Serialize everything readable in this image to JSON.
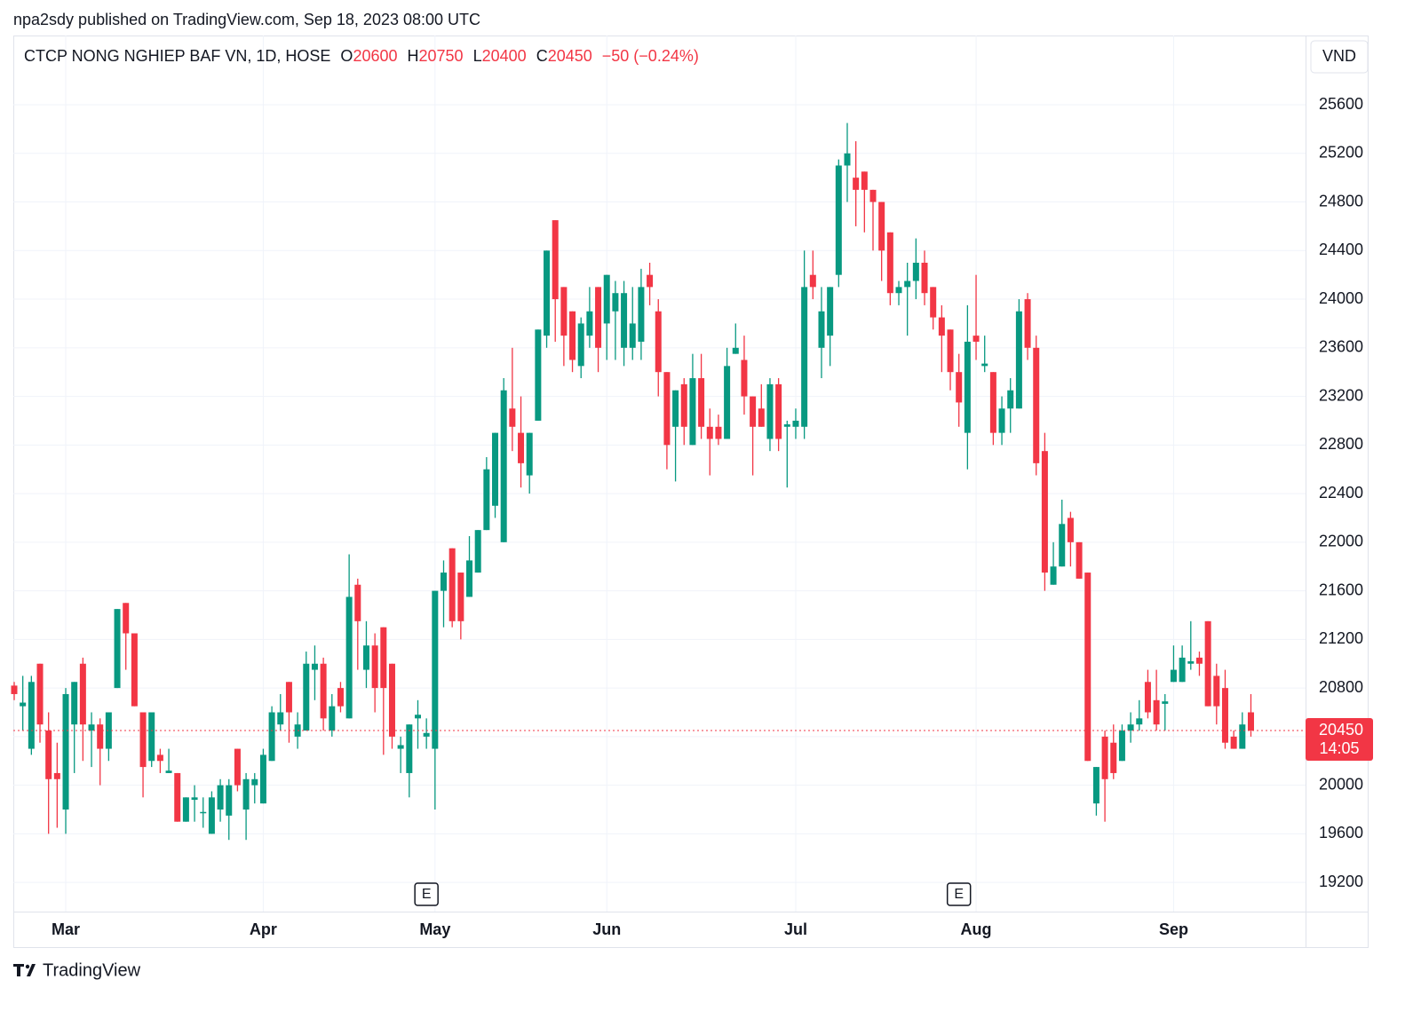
{
  "publisher": "npa2sdy published on TradingView.com, Sep 18, 2023 08:00 UTC",
  "brand": "TradingView",
  "header": {
    "symbol": "CTCP NONG NGHIEP BAF VN, 1D, HOSE",
    "o": "O",
    "h": "H",
    "l": "L",
    "c": "C",
    "change": "−50 (−0.24%)"
  },
  "currency": "VND",
  "countdown": "14:05",
  "chart_data": {
    "type": "candlestick",
    "up_color": "#089981",
    "down_color": "#f23645",
    "grid": true,
    "ylim": [
      18960,
      26170
    ],
    "yticks": [
      19200,
      19600,
      20000,
      20400,
      20800,
      21200,
      21600,
      22000,
      22400,
      22800,
      23200,
      23600,
      24000,
      24400,
      24800,
      25200,
      25600
    ],
    "events": [
      {
        "label": "E",
        "bar": 48
      },
      {
        "label": "E",
        "bar": 110
      }
    ],
    "categories": [
      null,
      null,
      null,
      null,
      null,
      null,
      "Mar",
      null,
      null,
      null,
      null,
      null,
      null,
      null,
      null,
      null,
      null,
      null,
      null,
      null,
      null,
      null,
      null,
      null,
      null,
      null,
      null,
      null,
      null,
      "Apr",
      null,
      null,
      null,
      null,
      null,
      null,
      null,
      null,
      null,
      null,
      null,
      null,
      null,
      null,
      null,
      null,
      null,
      null,
      null,
      "May",
      null,
      null,
      null,
      null,
      null,
      null,
      null,
      null,
      null,
      null,
      null,
      null,
      null,
      null,
      null,
      null,
      null,
      null,
      null,
      "Jun",
      null,
      null,
      null,
      null,
      null,
      null,
      null,
      null,
      null,
      null,
      null,
      null,
      null,
      null,
      null,
      null,
      null,
      null,
      null,
      null,
      null,
      "Jul",
      null,
      null,
      null,
      null,
      null,
      null,
      null,
      null,
      null,
      null,
      null,
      null,
      null,
      null,
      null,
      null,
      null,
      null,
      null,
      null,
      "Aug",
      null,
      null,
      null,
      null,
      null,
      null,
      null,
      null,
      null,
      null,
      null,
      null,
      null,
      null,
      null,
      null,
      null,
      null,
      null,
      null,
      null,
      null,
      "Sep",
      null,
      null,
      null,
      null,
      null,
      null,
      null,
      null,
      null
    ],
    "open": [
      20820,
      20650,
      20300,
      21000,
      20450,
      20100,
      19800,
      20500,
      21000,
      20450,
      20500,
      20300,
      20800,
      21500,
      21250,
      20600,
      20200,
      20250,
      20100,
      20100,
      19700,
      19880,
      19770,
      19600,
      19800,
      19750,
      20300,
      19800,
      20000,
      19850,
      20200,
      20500,
      20850,
      20400,
      20450,
      20950,
      21000,
      20450,
      20800,
      20550,
      21650,
      20950,
      21150,
      21300,
      21000,
      20300,
      20100,
      20550,
      20400,
      20300,
      21600,
      21950,
      21750,
      21550,
      21750,
      22100,
      22300,
      22000,
      23100,
      22900,
      22550,
      23000,
      23700,
      24650,
      24100,
      23900,
      23450,
      23700,
      24100,
      23800,
      23900,
      23600,
      23600,
      23650,
      24200,
      23900,
      23400,
      22950,
      23300,
      22800,
      23350,
      22950,
      22950,
      22850,
      23550,
      23500,
      23200,
      23100,
      22850,
      23300,
      22950,
      22950,
      22950,
      24200,
      23600,
      23700,
      24200,
      25100,
      25000,
      25050,
      24900,
      24800,
      24550,
      24050,
      24100,
      24150,
      24300,
      24100,
      23850,
      23750,
      23400,
      22900,
      23700,
      23450,
      23400,
      22900,
      23100,
      23100,
      24000,
      23600,
      22750,
      21650,
      21800,
      22200,
      22000,
      21750,
      19850,
      20400,
      20350,
      20200,
      20450,
      20500,
      20850,
      20700,
      20670,
      20850,
      20850,
      21000,
      21050,
      21350,
      20900,
      20800,
      20400,
      20300,
      20600
    ],
    "high": [
      20850,
      20900,
      20900,
      21000,
      20600,
      20350,
      20800,
      20850,
      21050,
      20600,
      20550,
      20600,
      21450,
      21500,
      21250,
      20600,
      20600,
      20300,
      20300,
      20100,
      19900,
      20000,
      19900,
      19950,
      20050,
      20050,
      20300,
      20100,
      20100,
      20300,
      20650,
      20750,
      20850,
      20600,
      21100,
      21150,
      21050,
      20750,
      20850,
      21900,
      21700,
      21350,
      21250,
      21300,
      21000,
      20400,
      20500,
      20700,
      20550,
      21600,
      21850,
      21950,
      21750,
      22050,
      22100,
      22700,
      22900,
      23350,
      23600,
      23200,
      22900,
      23750,
      24400,
      24650,
      24100,
      23900,
      23850,
      24100,
      24100,
      24200,
      24150,
      24150,
      24100,
      24250,
      24300,
      24000,
      23400,
      23250,
      23350,
      23550,
      23550,
      23100,
      23050,
      23600,
      23800,
      23700,
      23200,
      23300,
      23350,
      23350,
      23000,
      23100,
      24400,
      24400,
      24100,
      24100,
      25150,
      25450,
      25300,
      25050,
      24900,
      24800,
      24550,
      24150,
      24300,
      24500,
      24400,
      24100,
      23950,
      23750,
      23550,
      23950,
      24200,
      23700,
      23400,
      23200,
      23350,
      24000,
      24050,
      23700,
      22900,
      22000,
      22350,
      22250,
      22000,
      21750,
      20150,
      20450,
      20500,
      20500,
      20600,
      20700,
      20950,
      20950,
      20750,
      21150,
      21150,
      21350,
      21100,
      21350,
      21000,
      20950,
      20450,
      20600,
      20750
    ],
    "low": [
      20700,
      20450,
      20250,
      20350,
      19600,
      19650,
      19600,
      20100,
      20200,
      20150,
      20000,
      20200,
      20800,
      20950,
      20650,
      19900,
      20150,
      20100,
      20100,
      19700,
      19700,
      19700,
      19650,
      19600,
      19700,
      19550,
      19950,
      19550,
      19850,
      19850,
      20200,
      20450,
      20350,
      20300,
      20450,
      20700,
      20450,
      20400,
      20600,
      20550,
      20950,
      20800,
      20600,
      20250,
      20300,
      20100,
      19900,
      20300,
      20300,
      19800,
      21300,
      21300,
      21200,
      21550,
      21750,
      22100,
      22200,
      22000,
      22750,
      22450,
      22400,
      23000,
      23600,
      23650,
      23450,
      23400,
      23350,
      23600,
      23400,
      23500,
      23500,
      23450,
      23500,
      23500,
      23950,
      23200,
      22600,
      22500,
      22800,
      22800,
      22850,
      22550,
      22800,
      22850,
      23550,
      23050,
      22550,
      22950,
      22750,
      22750,
      22450,
      22850,
      22850,
      24000,
      23350,
      23450,
      24100,
      24800,
      24600,
      24550,
      24400,
      24150,
      23950,
      23950,
      23700,
      24000,
      23950,
      23750,
      23400,
      23250,
      22950,
      22600,
      23500,
      23400,
      22800,
      22800,
      22900,
      23100,
      23500,
      22550,
      21600,
      21650,
      21800,
      21800,
      21700,
      20200,
      19750,
      19700,
      20050,
      20200,
      20350,
      20450,
      20550,
      20450,
      20450,
      20850,
      20850,
      20950,
      20900,
      20650,
      20500,
      20300,
      20300,
      20300,
      20400
    ],
    "close": [
      20750,
      20680,
      20850,
      20500,
      20050,
      20050,
      20750,
      20850,
      20500,
      20500,
      20300,
      20600,
      21450,
      21250,
      20650,
      20150,
      20600,
      20200,
      20120,
      19700,
      19900,
      19900,
      19780,
      19900,
      20000,
      20000,
      20000,
      20050,
      20050,
      20250,
      20600,
      20600,
      20600,
      20500,
      21000,
      21000,
      20550,
      20650,
      20650,
      21550,
      21350,
      21150,
      20800,
      20800,
      20400,
      20330,
      20500,
      20580,
      20430,
      21600,
      21750,
      21350,
      21350,
      21850,
      22100,
      22600,
      22900,
      23250,
      22950,
      22650,
      22900,
      23750,
      24400,
      24000,
      23700,
      23500,
      23800,
      23900,
      23600,
      24200,
      24050,
      24050,
      23800,
      24100,
      24100,
      23400,
      22800,
      23250,
      22950,
      23350,
      22950,
      22850,
      22850,
      23450,
      23600,
      23200,
      22950,
      22950,
      23300,
      22850,
      22970,
      23000,
      24100,
      24100,
      23900,
      24100,
      25100,
      25200,
      24900,
      24900,
      24800,
      24400,
      24050,
      24100,
      24150,
      24300,
      24050,
      23850,
      23700,
      23400,
      23150,
      23650,
      23650,
      23470,
      22900,
      23100,
      23250,
      23900,
      23600,
      22650,
      21750,
      21800,
      22150,
      22000,
      21700,
      20200,
      20150,
      20050,
      20100,
      20450,
      20500,
      20550,
      20600,
      20500,
      20690,
      20950,
      21050,
      21020,
      21000,
      20650,
      20650,
      20350,
      20300,
      20500,
      20450
    ]
  }
}
